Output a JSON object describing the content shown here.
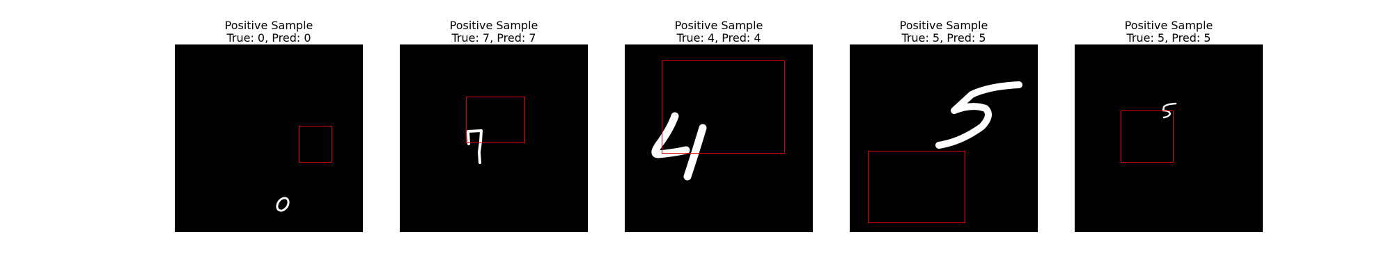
{
  "panels": [
    {
      "label": "Positive Sample",
      "true_label": "0",
      "pred_label": "0",
      "caption": "True: 0, Pred: 0"
    },
    {
      "label": "Positive Sample",
      "true_label": "7",
      "pred_label": "7",
      "caption": "True: 7, Pred: 7"
    },
    {
      "label": "Positive Sample",
      "true_label": "4",
      "pred_label": "4",
      "caption": "True: 4, Pred: 4"
    },
    {
      "label": "Positive Sample",
      "true_label": "5",
      "pred_label": "5",
      "caption": "True: 5, Pred: 5"
    },
    {
      "label": "Positive Sample",
      "true_label": "5",
      "pred_label": "5",
      "caption": "True: 5, Pred: 5"
    }
  ],
  "colors": {
    "box": "#e00000",
    "background": "#000000",
    "digit": "#ffffff"
  }
}
